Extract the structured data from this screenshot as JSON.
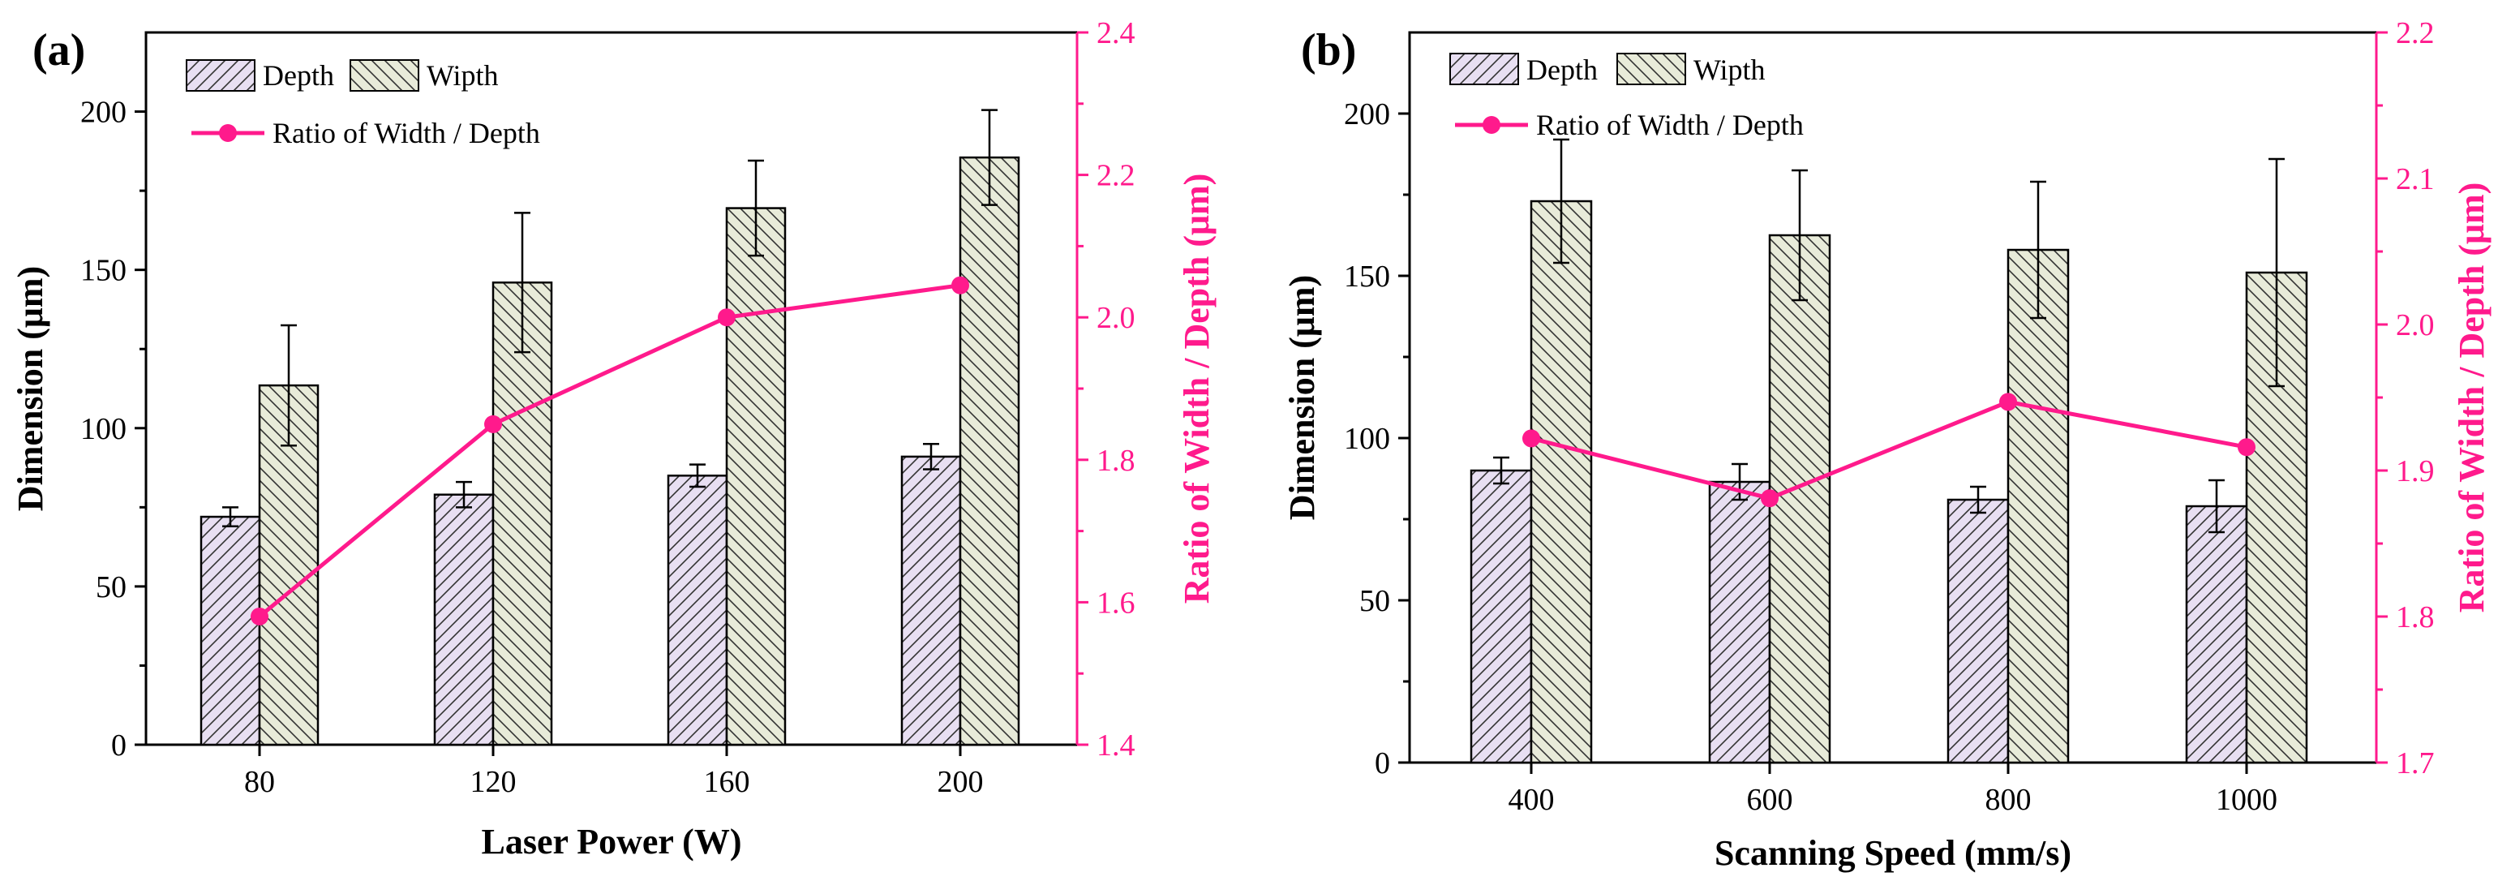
{
  "colors": {
    "axis": "#000000",
    "ratio": "#ff1a8c",
    "depth_fill": "#e8dff2",
    "width_fill": "#e8ebd9",
    "hatch": "#333333"
  },
  "chart_data": [
    {
      "type": "bar",
      "panel_label": "(a)",
      "categories": [
        "80",
        "120",
        "160",
        "200"
      ],
      "xlabel": "Laser Power (W)",
      "ylabel": "Dimension (μm)",
      "y2label": "Ratio of Width / Depth (μm)",
      "ylim": [
        0,
        225
      ],
      "yticks": [
        "0",
        "50",
        "100",
        "150",
        "200"
      ],
      "y2lim": [
        1.4,
        2.4
      ],
      "y2ticks": [
        "1.4",
        "1.6",
        "1.8",
        "2.0",
        "2.2",
        "2.4"
      ],
      "series": [
        {
          "name": "Depth",
          "values": [
            72,
            79,
            85,
            91
          ],
          "errors": [
            3,
            4,
            3.5,
            4
          ]
        },
        {
          "name": "Wipth",
          "values": [
            113.5,
            146,
            169.5,
            185.5
          ],
          "errors": [
            19,
            22,
            15,
            15
          ]
        }
      ],
      "line": {
        "name": "Ratio of Width / Depth",
        "values": [
          1.58,
          1.85,
          2.0,
          2.045
        ]
      },
      "grid": false,
      "legend": "top-left"
    },
    {
      "type": "bar",
      "panel_label": "(b)",
      "categories": [
        "400",
        "600",
        "800",
        "1000"
      ],
      "xlabel": "Scanning Speed (mm/s)",
      "ylabel": "Dimension (μm)",
      "y2label": "Ratio of Width / Depth (μm)",
      "ylim": [
        0,
        225
      ],
      "yticks": [
        "0",
        "50",
        "100",
        "150",
        "200"
      ],
      "y2lim": [
        1.7,
        2.2
      ],
      "y2ticks": [
        "1.7",
        "1.8",
        "1.9",
        "2.0",
        "2.1",
        "2.2"
      ],
      "series": [
        {
          "name": "Depth",
          "values": [
            90,
            86.5,
            81,
            79
          ],
          "errors": [
            4,
            5.5,
            4,
            8
          ]
        },
        {
          "name": "Wipth",
          "values": [
            173,
            162.5,
            158,
            151
          ],
          "errors": [
            19,
            20,
            21,
            35
          ]
        }
      ],
      "line": {
        "name": "Ratio of Width / Depth",
        "values": [
          1.922,
          1.881,
          1.947,
          1.916
        ]
      },
      "grid": false,
      "legend": "top-left"
    }
  ]
}
